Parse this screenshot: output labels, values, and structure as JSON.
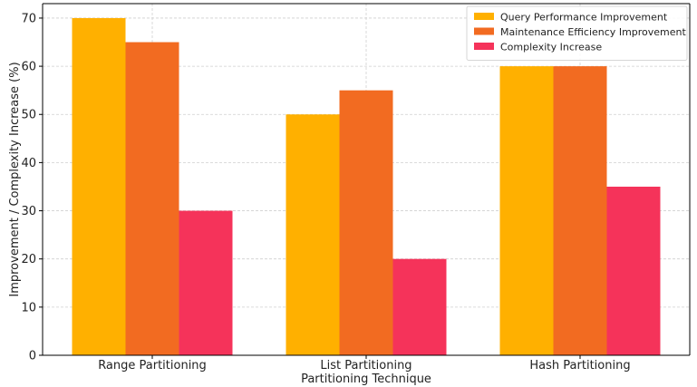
{
  "chart_data": {
    "type": "bar",
    "categories": [
      "Range Partitioning",
      "List Partitioning",
      "Hash Partitioning"
    ],
    "series": [
      {
        "name": "Query Performance Improvement",
        "values": [
          70,
          50,
          60
        ],
        "color": "#FFB000"
      },
      {
        "name": "Maintenance Efficiency Improvement",
        "values": [
          65,
          55,
          60
        ],
        "color": "#F26B21"
      },
      {
        "name": "Complexity Increase",
        "values": [
          30,
          20,
          35
        ],
        "color": "#F5335A"
      }
    ],
    "title": "",
    "xlabel": "Partitioning Technique",
    "ylabel": "Improvement / Complexity Increase (%)",
    "ylim": [
      0,
      73
    ],
    "yticks": [
      0,
      10,
      20,
      30,
      40,
      50,
      60,
      70
    ],
    "grid": true,
    "legend_position": "top-right"
  }
}
